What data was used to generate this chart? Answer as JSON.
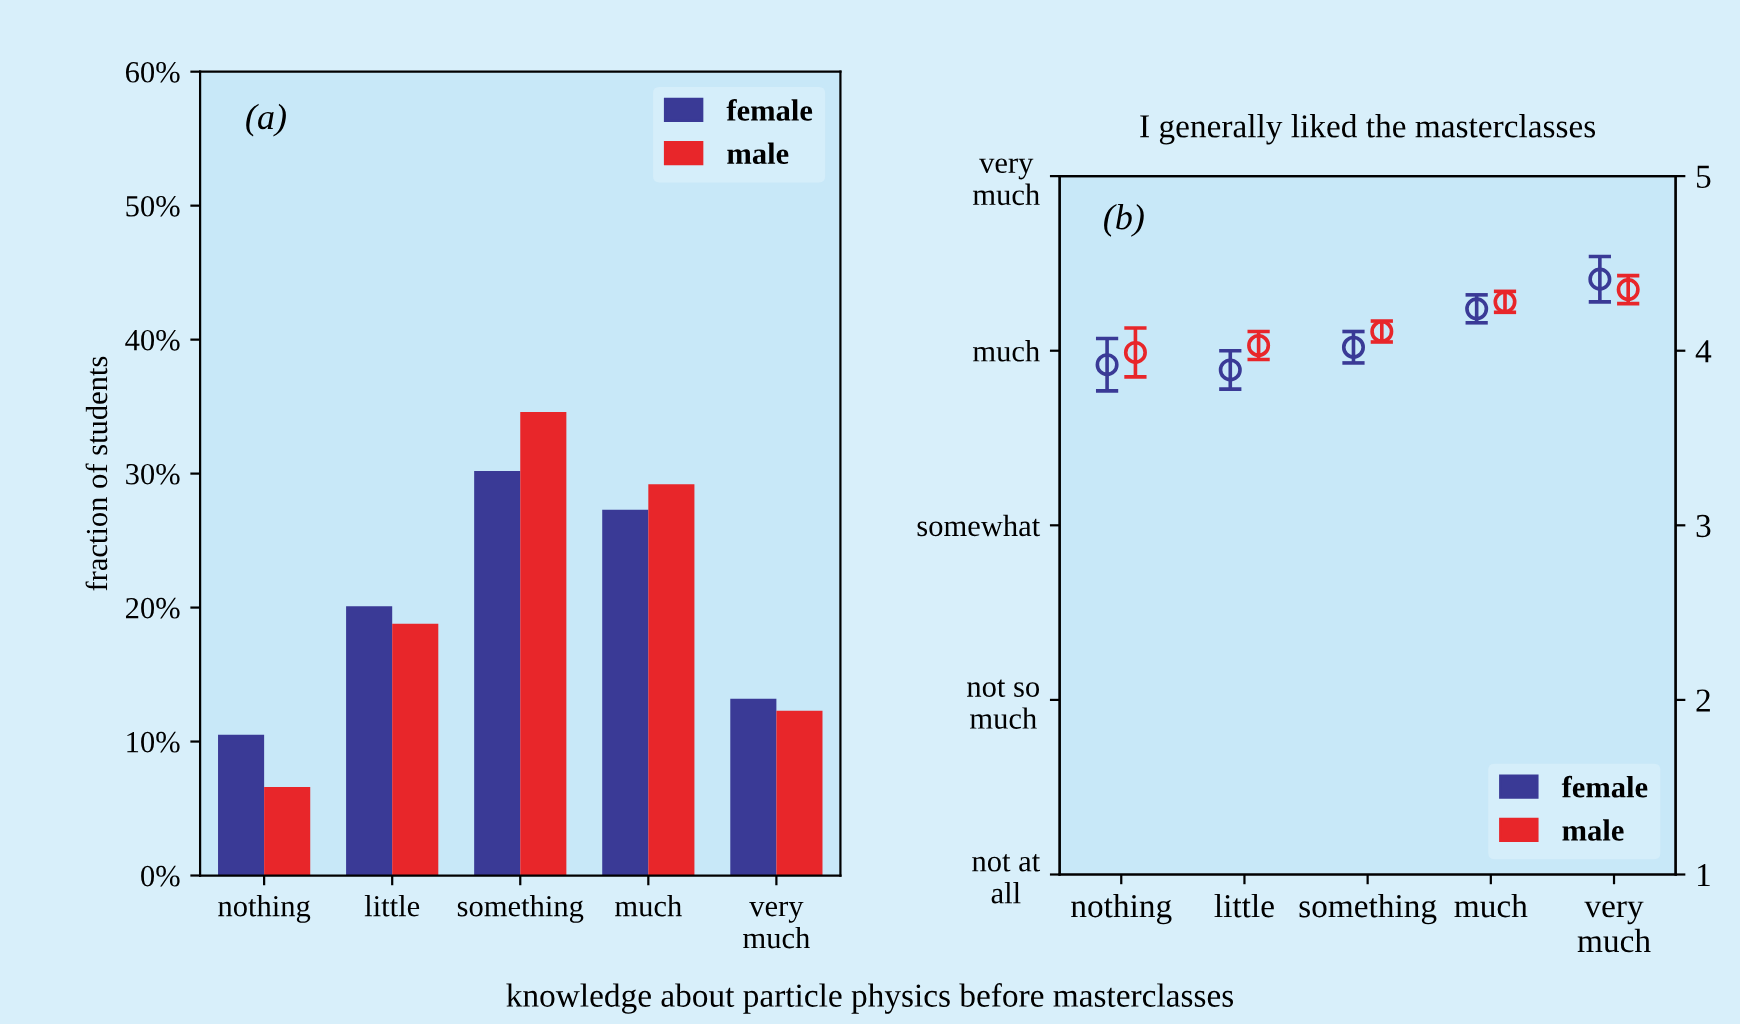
{
  "chart_data": [
    {
      "type": "bar",
      "categories": [
        "nothing",
        "little",
        "something",
        "much",
        "very\nmuch"
      ],
      "ylabel": "fraction of students",
      "xlabel": "knowledge about particle physics before masterclasses",
      "annotations": [
        "(a)"
      ],
      "series": [
        {
          "name": "female",
          "color": "#3a3a96",
          "values": [
            10.5,
            20.1,
            30.2,
            27.3,
            13.2
          ]
        },
        {
          "name": "male",
          "color": "#e8262a",
          "values": [
            6.6,
            18.8,
            34.6,
            29.2,
            12.3
          ]
        }
      ],
      "ylim": [
        0,
        60
      ],
      "yticks": [
        {
          "value": 0,
          "label": "0%"
        },
        {
          "value": 10,
          "label": "10%"
        },
        {
          "value": 20,
          "label": "20%"
        },
        {
          "value": 30,
          "label": "30%"
        },
        {
          "value": 40,
          "label": "40%"
        },
        {
          "value": 50,
          "label": "50%"
        },
        {
          "value": 60,
          "label": "60%"
        }
      ],
      "legend": "top right",
      "grid": false
    },
    {
      "type": "scatter",
      "title": "I generally liked the masterclasses",
      "categories": [
        "nothing",
        "little",
        "something",
        "much",
        "very\nmuch"
      ],
      "annotations": [
        "(b)",
        "not at\nall",
        "not so\nmuch",
        "somewhat",
        "much",
        "very\nmuch"
      ],
      "marker": "circle",
      "series": [
        {
          "name": "female",
          "color": "#3a3a96",
          "values": [
            3.92,
            3.89,
            4.02,
            4.24,
            4.41
          ],
          "errors": [
            0.15,
            0.11,
            0.09,
            0.08,
            0.13
          ]
        },
        {
          "name": "male",
          "color": "#e8262a",
          "values": [
            3.99,
            4.03,
            4.11,
            4.28,
            4.35
          ],
          "errors": [
            0.14,
            0.08,
            0.06,
            0.06,
            0.08
          ]
        }
      ],
      "ylim": [
        1,
        5
      ],
      "yticks": [
        1,
        2,
        3,
        4,
        5
      ],
      "legend": "bottom right",
      "grid": false
    }
  ]
}
